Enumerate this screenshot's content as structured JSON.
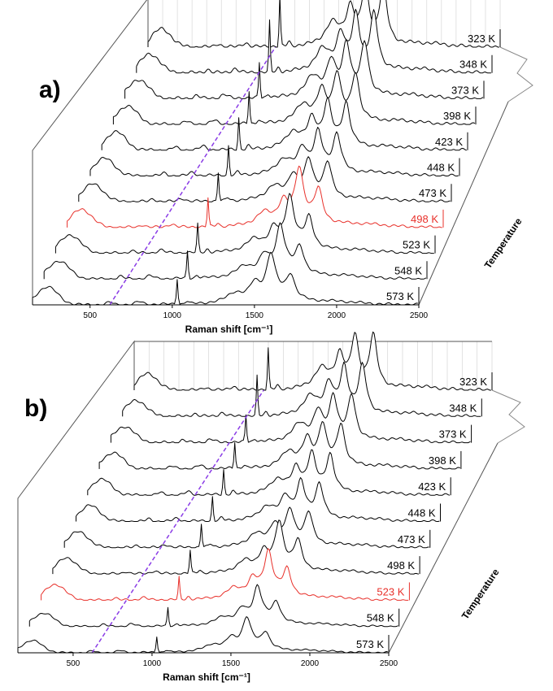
{
  "chart_data": [
    {
      "panel": "a)",
      "type": "line",
      "xlabel": "Raman shift [cm⁻¹]",
      "x_ticks": [
        500,
        1000,
        1500,
        2000,
        2500
      ],
      "xlim": [
        150,
        2500
      ],
      "depth_label": "Temperature",
      "highlight_color": "#e8302a",
      "guide_color": "#8a3ce6",
      "series": [
        {
          "name": "323 K",
          "highlight": false
        },
        {
          "name": "348 K",
          "highlight": false
        },
        {
          "name": "373 K",
          "highlight": false
        },
        {
          "name": "398 K",
          "highlight": false
        },
        {
          "name": "423 K",
          "highlight": false
        },
        {
          "name": "448 K",
          "highlight": false
        },
        {
          "name": "473 K",
          "highlight": false
        },
        {
          "name": "498 K",
          "highlight": true
        },
        {
          "name": "523 K",
          "highlight": false
        },
        {
          "name": "548 K",
          "highlight": false
        },
        {
          "name": "573 K",
          "highlight": false
        }
      ]
    },
    {
      "panel": "b)",
      "type": "line",
      "xlabel": "Raman shift [cm⁻¹]",
      "x_ticks": [
        500,
        1000,
        1500,
        2000,
        2500
      ],
      "xlim": [
        150,
        2500
      ],
      "depth_label": "Temperature",
      "highlight_color": "#e8302a",
      "guide_color": "#8a3ce6",
      "series": [
        {
          "name": "323 K",
          "highlight": false
        },
        {
          "name": "348 K",
          "highlight": false
        },
        {
          "name": "373 K",
          "highlight": false
        },
        {
          "name": "398 K",
          "highlight": false
        },
        {
          "name": "423 K",
          "highlight": false
        },
        {
          "name": "448 K",
          "highlight": false
        },
        {
          "name": "473 K",
          "highlight": false
        },
        {
          "name": "498 K",
          "highlight": false
        },
        {
          "name": "523 K",
          "highlight": true
        },
        {
          "name": "548 K",
          "highlight": false
        },
        {
          "name": "573 K",
          "highlight": false
        }
      ]
    }
  ]
}
